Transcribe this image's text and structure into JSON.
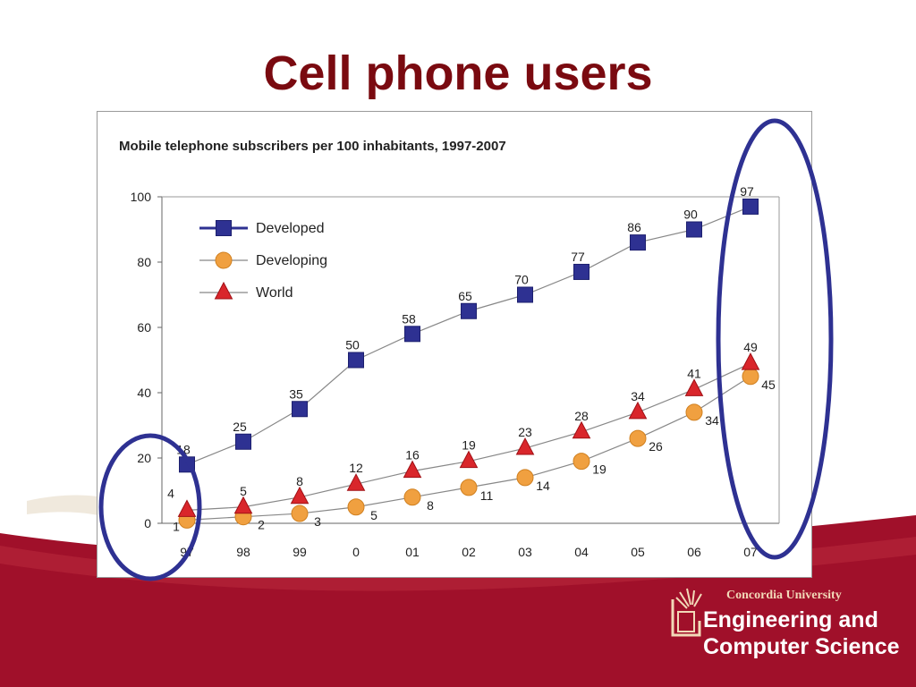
{
  "slide": {
    "title": "Cell phone users",
    "logo": {
      "university": "Concordia University",
      "department_line1": "Engineering and",
      "department_line2": "Computer Science"
    },
    "colors": {
      "title": "#7a0a10",
      "footer_band": "#a0102a",
      "highlight_ellipse": "#2e3192"
    }
  },
  "chart_data": {
    "type": "line",
    "title": "Mobile telephone subscribers per 100 inhabitants, 1997-2007",
    "categories": [
      "97",
      "98",
      "99",
      "0",
      "01",
      "02",
      "03",
      "04",
      "05",
      "06",
      "07"
    ],
    "ylim": [
      0,
      100
    ],
    "yticks": [
      0,
      20,
      40,
      60,
      80,
      100
    ],
    "grid": false,
    "legend_position": "top-left",
    "series": [
      {
        "name": "Developed",
        "marker": "square",
        "color": "#2e3192",
        "values": [
          18,
          25,
          35,
          50,
          58,
          65,
          70,
          77,
          86,
          90,
          97
        ]
      },
      {
        "name": "Developing",
        "marker": "circle",
        "color": "#f0a040",
        "values": [
          1,
          2,
          3,
          5,
          8,
          11,
          14,
          19,
          26,
          34,
          45
        ]
      },
      {
        "name": "World",
        "marker": "triangle",
        "color": "#d9262b",
        "values": [
          4,
          5,
          8,
          12,
          16,
          19,
          23,
          28,
          34,
          41,
          49
        ]
      }
    ],
    "annotations": [
      "highlight 97",
      "highlight 07"
    ]
  }
}
